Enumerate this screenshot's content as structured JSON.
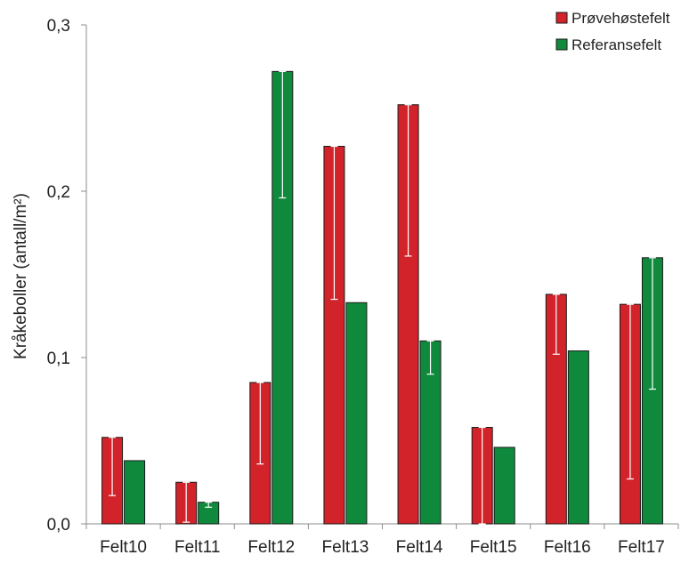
{
  "chart_data": {
    "type": "bar",
    "title": "",
    "xlabel": "",
    "ylabel": "Kråkeboller (antall/m²)",
    "ylim": [
      0,
      0.3
    ],
    "yticks": [
      {
        "value": 0.0,
        "label": "0,0"
      },
      {
        "value": 0.1,
        "label": "0,1"
      },
      {
        "value": 0.2,
        "label": "0,2"
      },
      {
        "value": 0.3,
        "label": "0,3"
      }
    ],
    "grid": false,
    "legend_position": "top-right",
    "categories": [
      "Felt10",
      "Felt11",
      "Felt12",
      "Felt13",
      "Felt14",
      "Felt15",
      "Felt16",
      "Felt17"
    ],
    "series": [
      {
        "name": "Prøvehøstefelt",
        "color": "#d2232a",
        "values": [
          0.052,
          0.025,
          0.085,
          0.227,
          0.252,
          0.058,
          0.138,
          0.132
        ],
        "error_lower": [
          0.017,
          0.001,
          0.036,
          0.135,
          0.161,
          0.0,
          0.102,
          0.027
        ]
      },
      {
        "name": "Referansefelt",
        "color": "#0f8a3c",
        "values": [
          0.038,
          0.013,
          0.272,
          0.133,
          0.11,
          0.046,
          0.104,
          0.16
        ],
        "error_lower": [
          null,
          0.01,
          0.196,
          null,
          0.09,
          null,
          null,
          0.081
        ]
      }
    ]
  }
}
